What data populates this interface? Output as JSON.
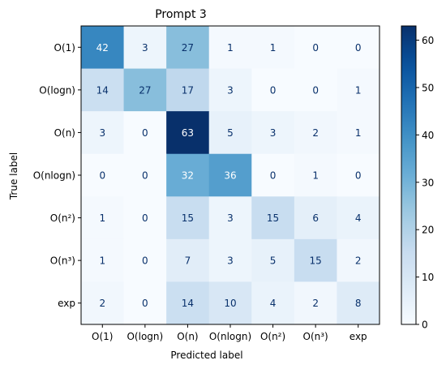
{
  "chart_data": {
    "type": "heatmap",
    "title": "Prompt 3",
    "xlabel": "Predicted label",
    "ylabel": "True label",
    "x_categories": [
      "O(1)",
      "O(logn)",
      "O(n)",
      "O(nlogn)",
      "O(n²)",
      "O(n³)",
      "exp"
    ],
    "y_categories": [
      "O(1)",
      "O(logn)",
      "O(n)",
      "O(nlogn)",
      "O(n²)",
      "O(n³)",
      "exp"
    ],
    "values": [
      [
        42,
        3,
        27,
        1,
        1,
        0,
        0
      ],
      [
        14,
        27,
        17,
        3,
        0,
        0,
        1
      ],
      [
        3,
        0,
        63,
        5,
        3,
        2,
        1
      ],
      [
        0,
        0,
        32,
        36,
        0,
        1,
        0
      ],
      [
        1,
        0,
        15,
        3,
        15,
        6,
        4
      ],
      [
        1,
        0,
        7,
        3,
        5,
        15,
        2
      ],
      [
        2,
        0,
        14,
        10,
        4,
        2,
        8
      ]
    ],
    "colormap": "Blues",
    "colorbar": {
      "range": [
        0,
        63
      ],
      "ticks": [
        0,
        10,
        20,
        30,
        40,
        50,
        60
      ]
    }
  }
}
